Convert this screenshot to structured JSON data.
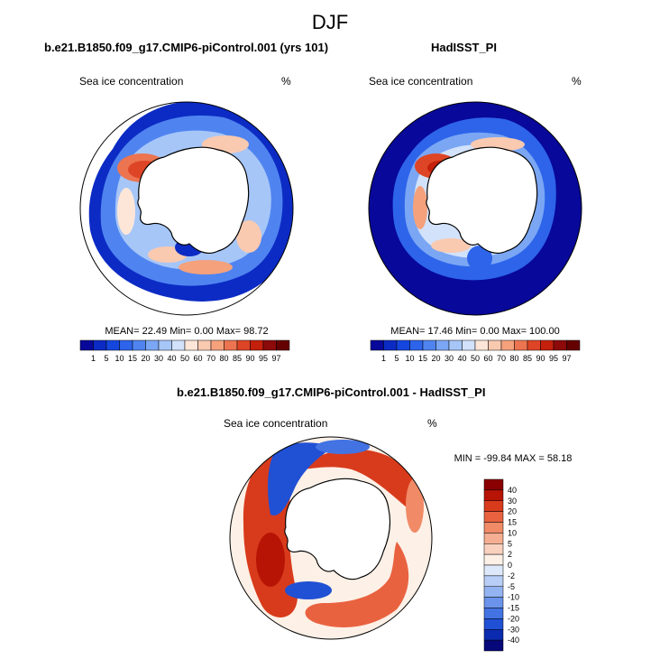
{
  "figure_title": "DJF",
  "panels": [
    {
      "title": "b.e21.B1850.f09_g17.CMIP6-piControl.001 (yrs 101)",
      "field_label": "Sea ice concentration",
      "units": "%",
      "stats": "MEAN=  22.49  Min=   0.00  Max=  98.72",
      "colorbar_ticks": [
        "1",
        "5",
        "10",
        "15",
        "20",
        "30",
        "40",
        "50",
        "60",
        "70",
        "80",
        "85",
        "90",
        "95",
        "97"
      ]
    },
    {
      "title": "HadISST_PI",
      "field_label": "Sea ice concentration",
      "units": "%",
      "stats": "MEAN=  17.46  Min=   0.00  Max= 100.00",
      "colorbar_ticks": [
        "1",
        "5",
        "10",
        "15",
        "20",
        "30",
        "40",
        "50",
        "60",
        "70",
        "80",
        "85",
        "90",
        "95",
        "97"
      ]
    },
    {
      "title": "b.e21.B1850.f09_g17.CMIP6-piControl.001 - HadISST_PI",
      "field_label": "Sea ice concentration",
      "units": "%",
      "stats": "MIN = -99.84  MAX =   58.18",
      "colorbar_ticks": [
        "40",
        "30",
        "20",
        "15",
        "10",
        "5",
        "2",
        "0",
        "-2",
        "-5",
        "-10",
        "-15",
        "-20",
        "-30",
        "-40"
      ]
    }
  ],
  "colors": {
    "seq_scale": [
      "#08089a",
      "#0c2bc4",
      "#1547df",
      "#2d64ea",
      "#4f84f0",
      "#7aa6f4",
      "#a6c6f8",
      "#d2e2fb",
      "#fde6d8",
      "#f9c9b0",
      "#f4a17c",
      "#ec7450",
      "#de4526",
      "#c4200c",
      "#8c0a0a",
      "#650000"
    ],
    "diff_scale": [
      "#8a0000",
      "#b81405",
      "#d83b1c",
      "#e96240",
      "#f08a67",
      "#f5ae91",
      "#f9d1be",
      "#fdf0e6",
      "#dde8fb",
      "#b8cef7",
      "#93b3f1",
      "#6b93ea",
      "#4373e3",
      "#2050d4",
      "#0a2bb0",
      "#06087a"
    ],
    "land": "#ffffff",
    "ocean_open": "#ffffff"
  }
}
